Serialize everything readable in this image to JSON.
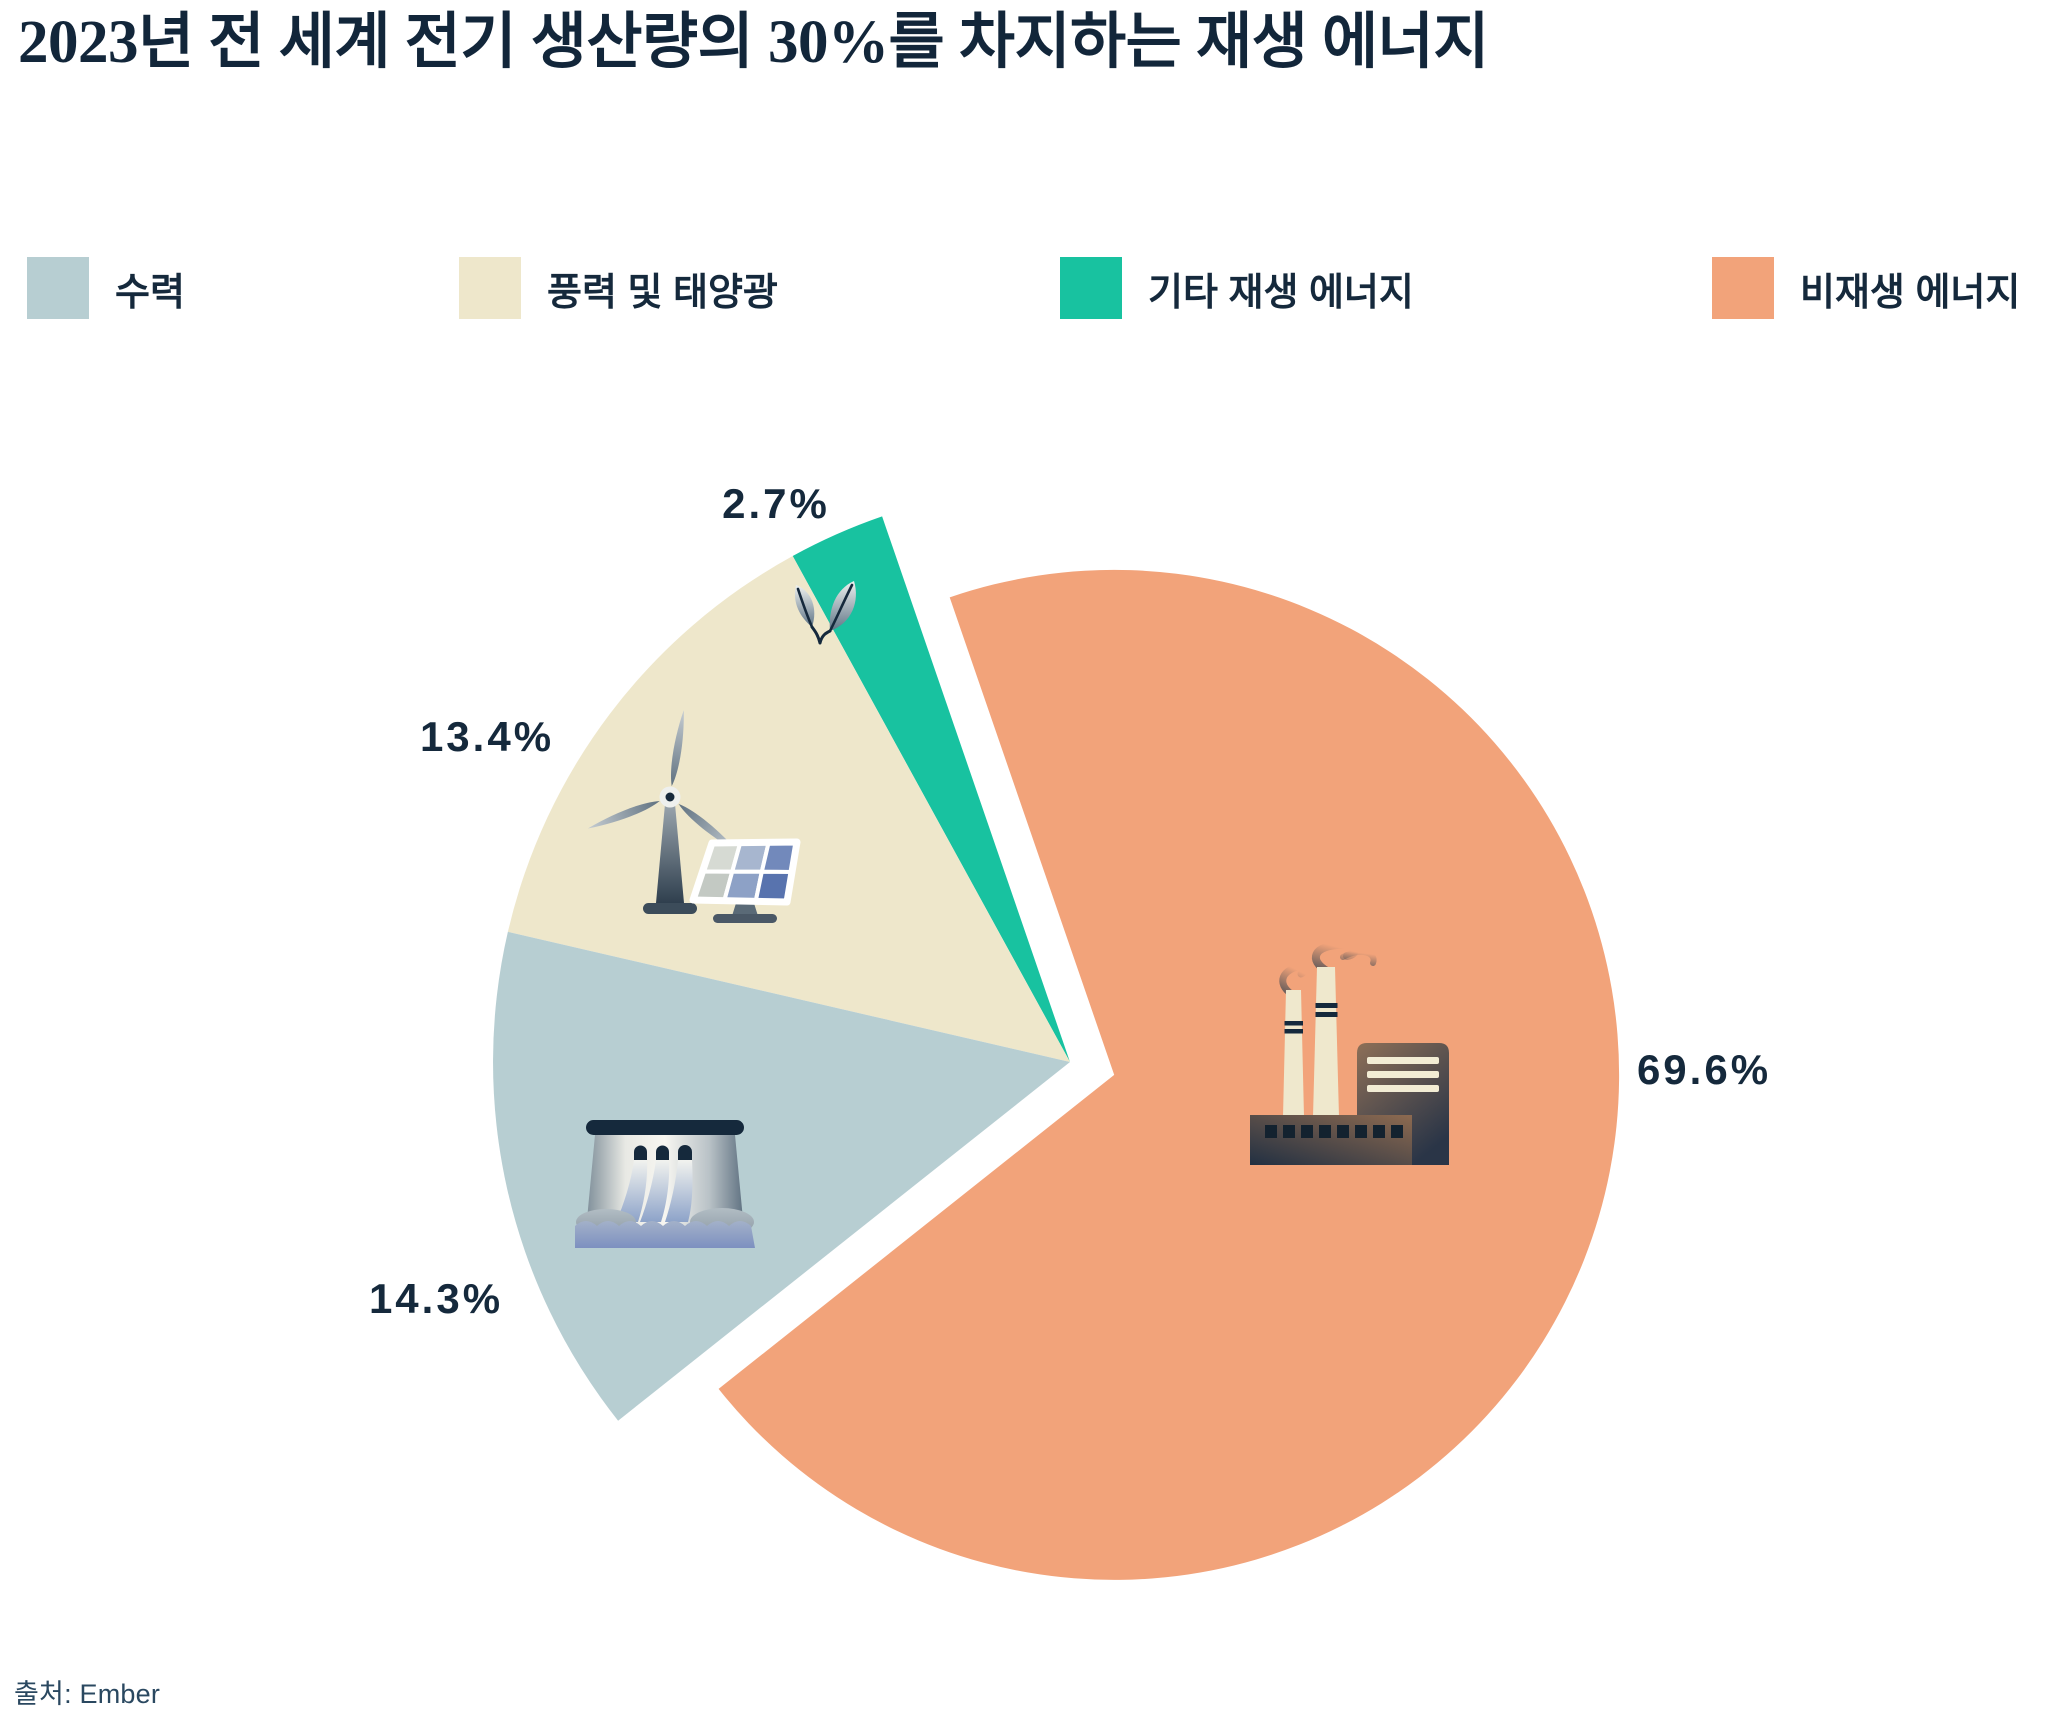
{
  "title": "2023년 전 세계 전기 생산량의 30%를 차지하는 재생 에너지",
  "source": "출처: Ember",
  "chart_data": {
    "type": "pie",
    "title": "2023년 전 세계 전기 생산량의 30%를 차지하는 재생 에너지",
    "unit": "%",
    "legend_position": "top",
    "background": "#ffffff",
    "text_color": "#15293c",
    "slices": [
      {
        "name": "수력",
        "value": 14.3,
        "label": "14.3%",
        "color": "#b7ced2",
        "icon": "hydro-dam-icon",
        "exploded": false
      },
      {
        "name": "풍력 및 태양광",
        "value": 13.4,
        "label": "13.4%",
        "color": "#eee7cb",
        "icon": "wind-solar-icon",
        "exploded": false
      },
      {
        "name": "기타 재생 에너지",
        "value": 2.7,
        "label": "2.7%",
        "color": "#18c2a0",
        "icon": "leaf-icon",
        "exploded": false
      },
      {
        "name": "비재생 에너지",
        "value": 69.6,
        "label": "69.6%",
        "color": "#f2a37a",
        "icon": "factory-icon",
        "exploded": true
      }
    ]
  }
}
